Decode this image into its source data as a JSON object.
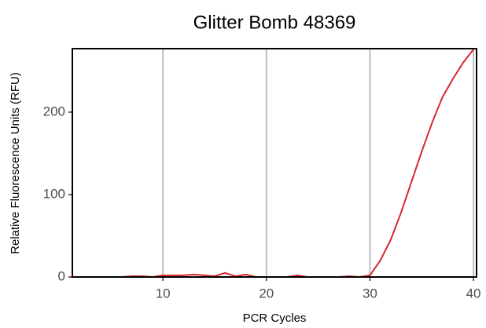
{
  "chart_data": {
    "type": "line",
    "title": "Glitter Bomb 48369",
    "x_label": "PCR Cycles",
    "y_label": "Relative Fluorescence Units (RFU)",
    "x": [
      1,
      2,
      3,
      4,
      5,
      6,
      7,
      8,
      9,
      10,
      11,
      12,
      13,
      14,
      15,
      16,
      17,
      18,
      19,
      20,
      21,
      22,
      23,
      24,
      25,
      26,
      27,
      28,
      29,
      30,
      31,
      32,
      33,
      34,
      35,
      36,
      37,
      38,
      39,
      40
    ],
    "series": [
      {
        "name": "RFU",
        "color": "#d7262b",
        "values": [
          0,
          0,
          0,
          0,
          0,
          0,
          1,
          1,
          0,
          2,
          2,
          2,
          3,
          2,
          1,
          5,
          1,
          3,
          0,
          0,
          0,
          0,
          2,
          0,
          0,
          0,
          0,
          1,
          0,
          2,
          20,
          45,
          78,
          115,
          152,
          187,
          218,
          240,
          260,
          276
        ]
      }
    ],
    "xlim": [
      1.25,
      40.3
    ],
    "xticks": [
      10,
      20,
      30,
      40
    ],
    "ylim": [
      0,
      277
    ],
    "yticks": [
      0,
      100,
      200
    ],
    "grid": true
  }
}
